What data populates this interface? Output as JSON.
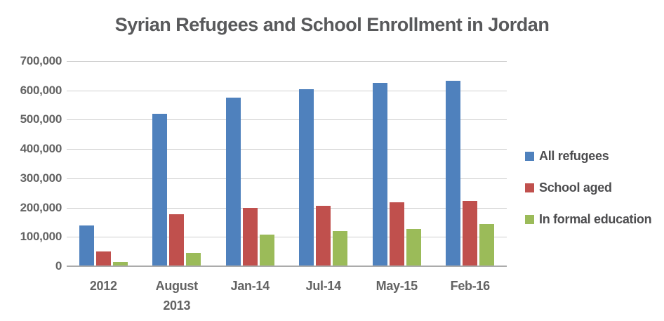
{
  "title": "Syrian Refugees and School Enrollment in Jordan",
  "chart_data": {
    "type": "bar",
    "title": "Syrian Refugees and School Enrollment in Jordan",
    "categories": [
      "2012",
      "August\n2013",
      "Jan-14",
      "Jul-14",
      "May-15",
      "Feb-16"
    ],
    "series": [
      {
        "name": "All refugees",
        "color": "#4F81BD",
        "values": [
          140000,
          520000,
          575000,
          605000,
          625000,
          633000
        ]
      },
      {
        "name": "School aged",
        "color": "#C0504D",
        "values": [
          50000,
          178000,
          200000,
          205000,
          218000,
          222000
        ]
      },
      {
        "name": "In formal education",
        "color": "#9BBB59",
        "values": [
          15000,
          45000,
          108000,
          120000,
          127000,
          143000
        ]
      }
    ],
    "xlabel": "",
    "ylabel": "",
    "ylim": [
      0,
      700000
    ],
    "y_ticks": [
      700000,
      600000,
      500000,
      400000,
      300000,
      200000,
      100000,
      0
    ],
    "y_tick_labels": [
      "700,000",
      "600,000",
      "500,000",
      "400,000",
      "300,000",
      "200,000",
      "100,000",
      "0"
    ],
    "grid": true,
    "legend_position": "right"
  },
  "colors": {
    "background": "#ffffff",
    "title_text": "#58595b",
    "axis_text": "#636363",
    "gridline": "#cfcfcf",
    "axis_line": "#ababab"
  }
}
